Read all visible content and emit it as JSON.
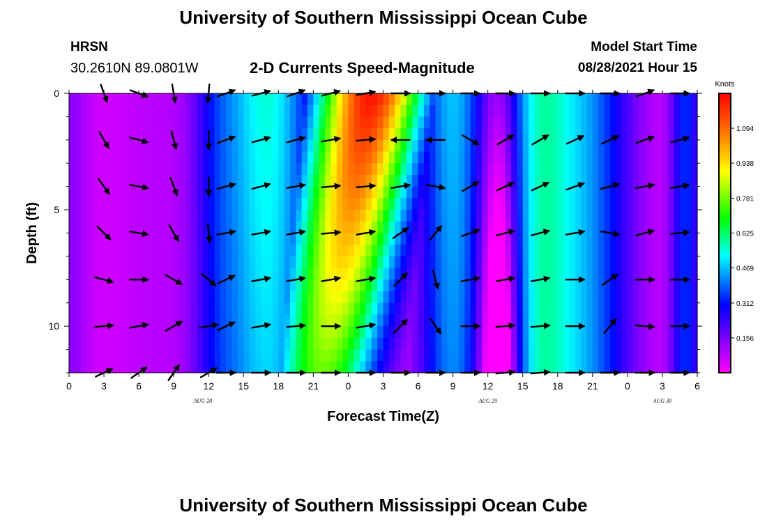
{
  "header": {
    "title": "University of Southern Mississippi Ocean Cube",
    "station": "HRSN",
    "coords": "30.2610N  89.0801W",
    "chart_title": "2-D Currents Speed-Magnitude",
    "model_start_label": "Model Start Time",
    "model_start_value": "08/28/2021 Hour 15"
  },
  "footer": {
    "title": "University of Southern Mississippi Ocean Cube"
  },
  "colors": {
    "magenta": "#ff00ff",
    "purple": "#7f00ff",
    "blue": "#0000ff",
    "sky": "#0080ff",
    "cyan": "#00ffff",
    "green": "#00ff00",
    "yellow": "#ffff00",
    "orange": "#ff8000",
    "red": "#ff0000"
  },
  "chart_data": {
    "type": "heatmap",
    "xlabel": "Forecast Time(Z)",
    "ylabel": "Depth (ft)",
    "colorbar_label": "Knots",
    "colorbar_ticks": [
      "1.094",
      "0.938",
      "0.781",
      "0.625",
      "0.469",
      "0.312",
      "0.156"
    ],
    "colorbar_tick_values": [
      1.094,
      0.938,
      0.781,
      0.625,
      0.469,
      0.312,
      0.156
    ],
    "value_range": [
      0,
      1.25
    ],
    "x_range": [
      0,
      54
    ],
    "x_ticks": [
      0,
      3,
      6,
      9,
      12,
      15,
      18,
      21,
      24,
      27,
      30,
      33,
      36,
      39,
      42,
      45,
      48,
      51,
      54
    ],
    "x_tick_labels": [
      "0",
      "3",
      "6",
      "9",
      "12",
      "15",
      "18",
      "21",
      "0",
      "3",
      "6",
      "9",
      "12",
      "15",
      "18",
      "21",
      "0",
      "3",
      "6"
    ],
    "date_labels": [
      {
        "x": 11.5,
        "text": "AUG 28"
      },
      {
        "x": 36,
        "text": "AUG 29"
      },
      {
        "x": 51,
        "text": "AUG 30"
      }
    ],
    "y_range": [
      0,
      12
    ],
    "y_ticks": [
      0,
      5,
      10
    ],
    "y_tick_labels": [
      "0",
      "5",
      "10"
    ],
    "depth_levels": [
      0,
      2,
      4,
      6,
      8,
      10,
      12
    ],
    "vector_times": [
      3,
      6,
      9,
      12,
      13.5,
      16.5,
      19.5,
      22.5,
      25.5,
      28.5,
      31.5,
      34.5,
      37.5,
      40.5,
      43.5,
      46.5,
      49.5,
      52.5
    ],
    "vector_angles_deg": [
      [
        -70,
        -20,
        -80,
        -95,
        20,
        15,
        20,
        15,
        10,
        0,
        0,
        0,
        0,
        0,
        0,
        0,
        20,
        0
      ],
      [
        -60,
        -15,
        -75,
        -90,
        20,
        15,
        15,
        10,
        5,
        180,
        180,
        -30,
        30,
        30,
        25,
        25,
        20,
        15
      ],
      [
        -55,
        -10,
        -70,
        -90,
        15,
        15,
        10,
        5,
        5,
        10,
        -10,
        30,
        25,
        25,
        20,
        15,
        10,
        10
      ],
      [
        -45,
        -10,
        -60,
        -85,
        10,
        10,
        10,
        5,
        10,
        35,
        50,
        20,
        15,
        15,
        10,
        -10,
        15,
        5
      ],
      [
        -15,
        0,
        -30,
        -40,
        25,
        10,
        10,
        10,
        10,
        45,
        -75,
        10,
        10,
        10,
        0,
        35,
        0,
        0
      ],
      [
        5,
        10,
        30,
        10,
        25,
        10,
        5,
        0,
        10,
        45,
        -55,
        0,
        5,
        5,
        0,
        50,
        -5,
        0
      ],
      [
        25,
        35,
        55,
        30,
        0,
        0,
        0,
        0,
        0,
        0,
        0,
        0,
        5,
        5,
        0,
        0,
        0,
        0
      ]
    ]
  }
}
